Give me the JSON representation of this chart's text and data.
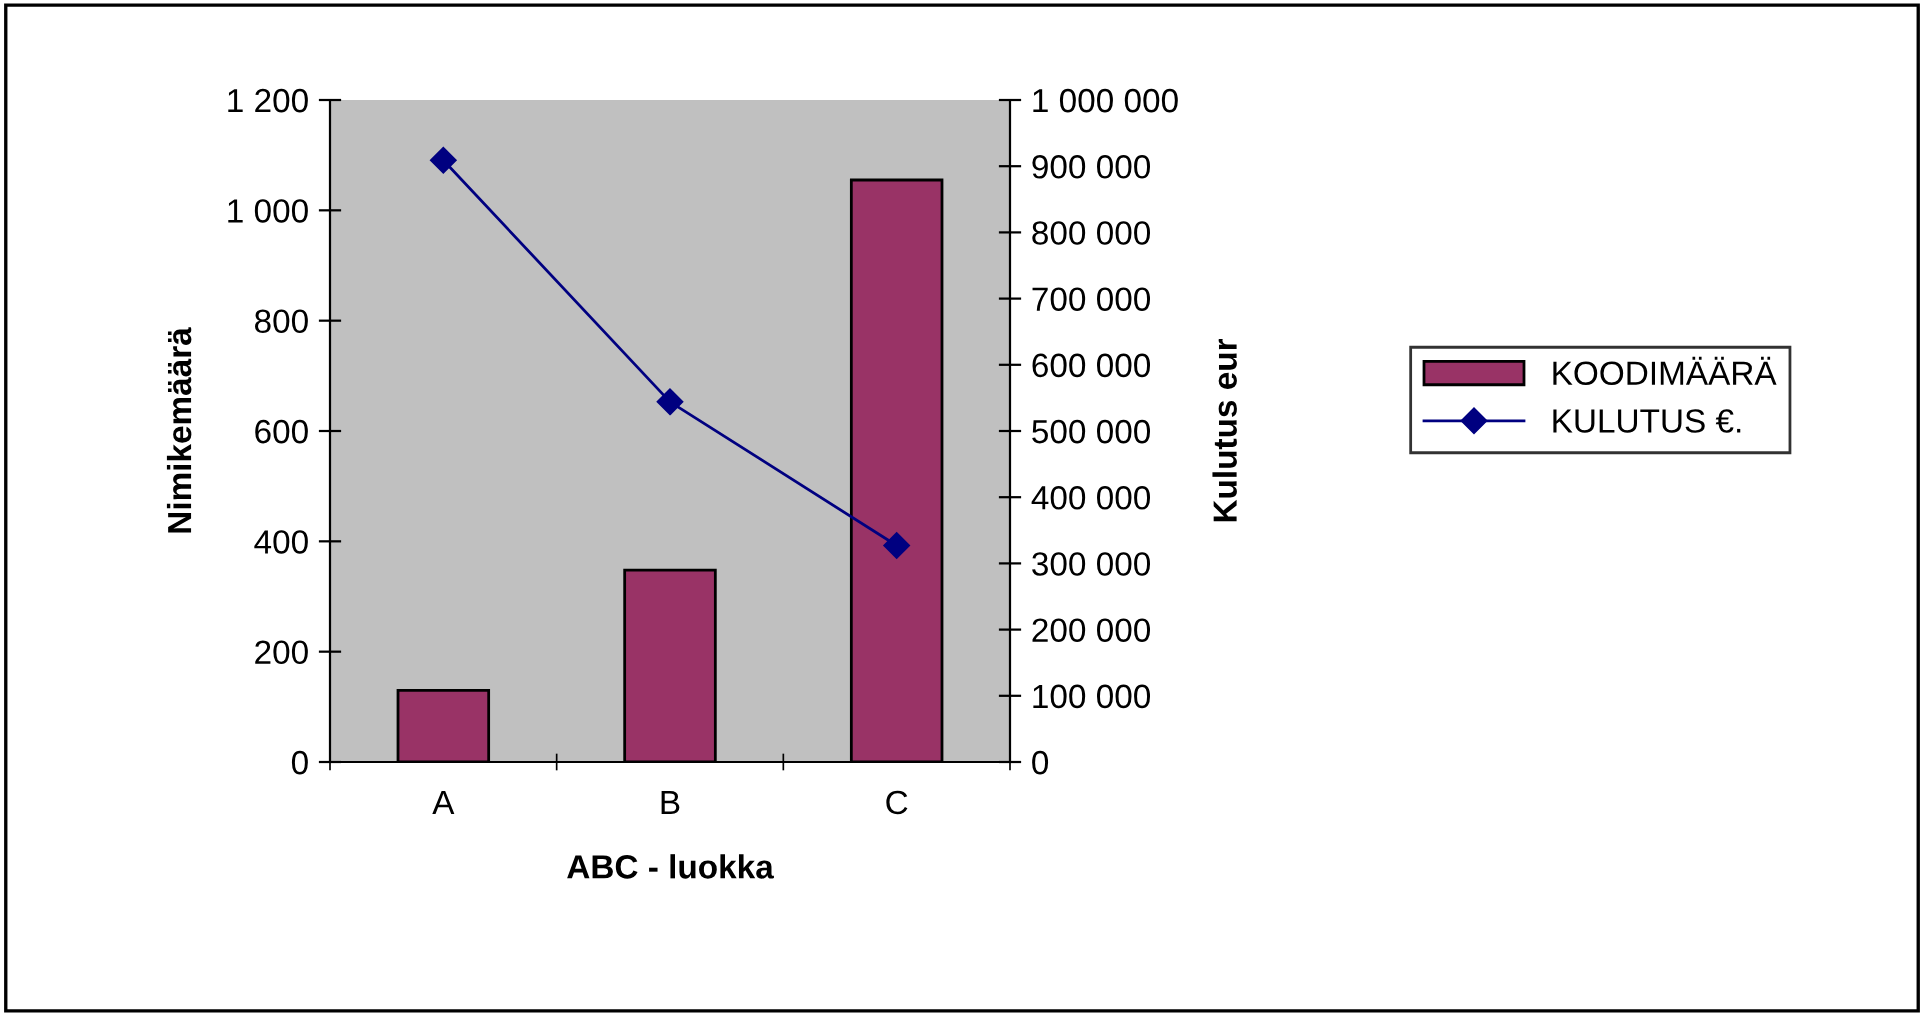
{
  "chart_data": {
    "type": "bar",
    "categories": [
      "A",
      "B",
      "C"
    ],
    "xlabel": "ABC - luokka",
    "ylabel": "Nimikemäärä",
    "y2label": "Kulutus eur",
    "ylim": [
      0,
      1200
    ],
    "yticks": [
      0,
      200,
      400,
      600,
      800,
      {
        "value": 1000,
        "label": "1 000"
      },
      {
        "value": 1200,
        "label": "1 200"
      }
    ],
    "y2lim": [
      0,
      1000000
    ],
    "y2ticks": [
      0,
      {
        "value": 100000,
        "label": "100 000"
      },
      {
        "value": 200000,
        "label": "200 000"
      },
      {
        "value": 300000,
        "label": "300 000"
      },
      {
        "value": 400000,
        "label": "400 000"
      },
      {
        "value": 500000,
        "label": "500 000"
      },
      {
        "value": 600000,
        "label": "600 000"
      },
      {
        "value": 700000,
        "label": "700 000"
      },
      {
        "value": 800000,
        "label": "800 000"
      },
      {
        "value": 900000,
        "label": "900 000"
      },
      {
        "value": 1000000,
        "label": "1 000 000"
      }
    ],
    "series": [
      {
        "name": "KOODIMÄÄRÄ",
        "color": "#993366",
        "values": [
          130,
          348,
          1055
        ]
      },
      {
        "name": "KULUTUS €.",
        "type": "line",
        "axis": "y2",
        "color": "#000080",
        "marker": "diamond",
        "values": [
          909000,
          544000,
          327000
        ]
      }
    ],
    "grid": false,
    "legend": "right"
  }
}
